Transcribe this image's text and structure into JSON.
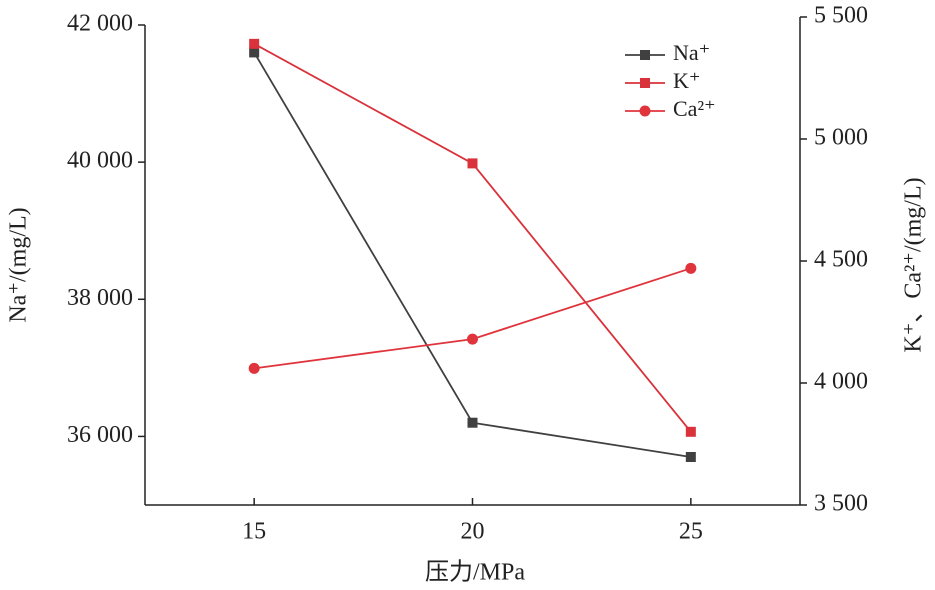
{
  "chart_data": {
    "type": "line",
    "x_label": "压力/MPa",
    "y_label": "Na⁺/(mg/L)",
    "y2_label": "K⁺、Ca²⁺/(mg/L)",
    "x": [
      15,
      20,
      25
    ],
    "xlim": [
      12.5,
      27.5
    ],
    "xticks": [
      15,
      20,
      25
    ],
    "ylim": [
      35000,
      42000
    ],
    "yticks": [
      {
        "value": 36000,
        "label": "36 000"
      },
      {
        "value": 38000,
        "label": "38 000"
      },
      {
        "value": 40000,
        "label": "40 000"
      },
      {
        "value": 42000,
        "label": "42 000"
      }
    ],
    "y2lim": [
      3500,
      5500
    ],
    "y2ticks": [
      {
        "value": 3500,
        "label": "3 500"
      },
      {
        "value": 4000,
        "label": "4 000"
      },
      {
        "value": 4500,
        "label": "4 500"
      },
      {
        "value": 5000,
        "label": "5 000"
      },
      {
        "value": 5500,
        "label": "5 500"
      }
    ],
    "legend": "upper right",
    "series": [
      {
        "name": "Na⁺",
        "color": "#404040",
        "marker": "square",
        "values": [
          41600,
          36200,
          35700
        ]
      },
      {
        "name": "K⁺",
        "color": "#d9323a",
        "marker": "square",
        "axis": "y2",
        "values": [
          5390,
          4900,
          3800
        ]
      },
      {
        "name": "Ca²⁺",
        "color": "#e0343c",
        "marker": "circle",
        "axis": "y2",
        "values": [
          4060,
          4180,
          4470
        ]
      }
    ]
  }
}
